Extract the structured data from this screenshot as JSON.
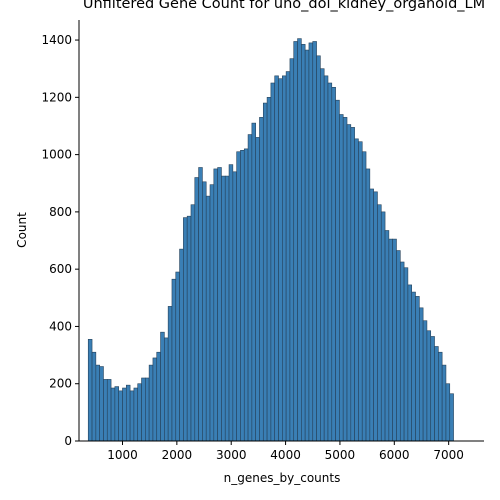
{
  "chart_data": {
    "type": "bar",
    "title": "Unfiltered Gene Count for uno_dol_kidney_organoid_LM",
    "xlabel": "n_genes_by_counts",
    "ylabel": "Count",
    "xlim": [
      200,
      7650
    ],
    "ylim": [
      0,
      1470
    ],
    "xticks": [
      1000,
      2000,
      3000,
      4000,
      5000,
      6000,
      7000
    ],
    "yticks": [
      0,
      200,
      400,
      600,
      800,
      1000,
      1200,
      1400
    ],
    "bar_color": "#3a7fb5",
    "edge_color": "#25415a",
    "bin_start": 370,
    "bin_width": 70,
    "values": [
      355,
      310,
      265,
      260,
      215,
      215,
      185,
      190,
      175,
      185,
      195,
      175,
      185,
      200,
      220,
      220,
      265,
      290,
      310,
      380,
      360,
      470,
      565,
      590,
      670,
      780,
      785,
      825,
      920,
      955,
      905,
      855,
      895,
      950,
      955,
      925,
      925,
      965,
      940,
      1010,
      1015,
      1020,
      1070,
      1110,
      1060,
      1130,
      1180,
      1200,
      1250,
      1275,
      1265,
      1275,
      1290,
      1335,
      1395,
      1405,
      1385,
      1365,
      1390,
      1395,
      1345,
      1300,
      1275,
      1250,
      1235,
      1190,
      1140,
      1130,
      1105,
      1095,
      1055,
      1045,
      1010,
      950,
      880,
      870,
      825,
      800,
      735,
      705,
      705,
      665,
      625,
      605,
      545,
      520,
      505,
      465,
      420,
      385,
      365,
      330,
      310,
      265,
      200,
      165
    ]
  }
}
